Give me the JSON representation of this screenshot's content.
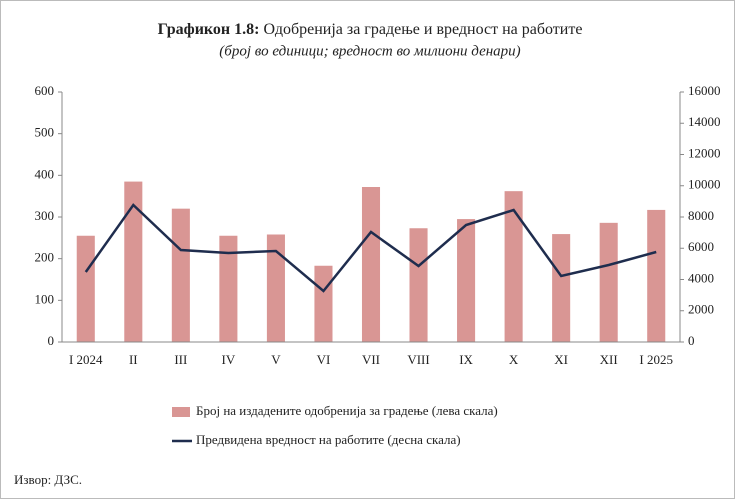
{
  "chart_data": {
    "type": "bar_line",
    "title_label": "Графикон 1.8:",
    "title": "Одобренија за градење и вредност на работите",
    "subtitle": "(број  во единици; вредност во милиони денари)",
    "categories": [
      "I 2024",
      "II",
      "III",
      "IV",
      "V",
      "VI",
      "VII",
      "VIII",
      "IX",
      "X",
      "XI",
      "XII",
      "I 2025"
    ],
    "series": [
      {
        "name": "Број на издадените одобренија за градење  (лева скала)",
        "type": "bar",
        "color": "#d99694",
        "values": [
          255,
          385,
          320,
          255,
          258,
          183,
          372,
          273,
          295,
          362,
          259,
          286,
          317
        ]
      },
      {
        "name": "Предвидена вредност на работите (десна скала)",
        "type": "line",
        "axis": "y2",
        "color": "#1f2d4e",
        "values": [
          4480,
          8768,
          5888,
          5696,
          5824,
          3264,
          7040,
          4864,
          7488,
          8448,
          4224,
          4928,
          5760
        ]
      }
    ],
    "ylim": [
      0,
      600
    ],
    "yticks": [
      0,
      100,
      200,
      300,
      400,
      500,
      600
    ],
    "y2lim": [
      0,
      16000
    ],
    "y2ticks": [
      0,
      2000,
      4000,
      6000,
      8000,
      10000,
      12000,
      14000,
      16000
    ],
    "source": "Извор: ДЗС."
  }
}
